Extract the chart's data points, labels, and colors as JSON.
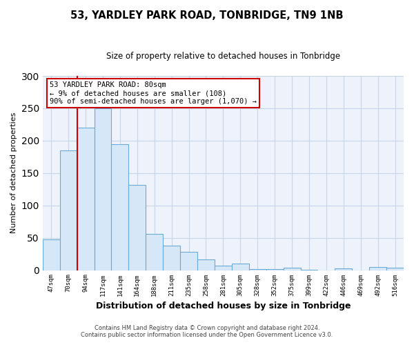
{
  "title": "53, YARDLEY PARK ROAD, TONBRIDGE, TN9 1NB",
  "subtitle": "Size of property relative to detached houses in Tonbridge",
  "xlabel": "Distribution of detached houses by size in Tonbridge",
  "ylabel": "Number of detached properties",
  "bar_labels": [
    "47sqm",
    "70sqm",
    "94sqm",
    "117sqm",
    "141sqm",
    "164sqm",
    "188sqm",
    "211sqm",
    "235sqm",
    "258sqm",
    "281sqm",
    "305sqm",
    "328sqm",
    "352sqm",
    "375sqm",
    "399sqm",
    "422sqm",
    "446sqm",
    "469sqm",
    "492sqm",
    "516sqm"
  ],
  "bar_values": [
    48,
    185,
    220,
    250,
    195,
    132,
    56,
    38,
    28,
    17,
    7,
    10,
    2,
    2,
    4,
    1,
    0,
    3,
    0,
    5,
    4
  ],
  "bar_color": "#d6e8f7",
  "bar_edge_color": "#6aaad4",
  "ylim": [
    0,
    300
  ],
  "yticks": [
    0,
    50,
    100,
    150,
    200,
    250,
    300
  ],
  "vline_color": "#cc0000",
  "annotation_text": "53 YARDLEY PARK ROAD: 80sqm\n← 9% of detached houses are smaller (108)\n90% of semi-detached houses are larger (1,070) →",
  "annotation_box_color": "#ffffff",
  "annotation_box_edge": "#cc0000",
  "footer1": "Contains HM Land Registry data © Crown copyright and database right 2024.",
  "footer2": "Contains public sector information licensed under the Open Government Licence v3.0.",
  "bg_color": "#ffffff",
  "plot_bg_color": "#eef3fb",
  "grid_color": "#c8d4e8",
  "title_fontsize": 10.5,
  "subtitle_fontsize": 8.5,
  "ylabel_fontsize": 8,
  "xlabel_fontsize": 9,
  "tick_fontsize": 6.5,
  "annotation_fontsize": 7.5,
  "footer_fontsize": 6
}
